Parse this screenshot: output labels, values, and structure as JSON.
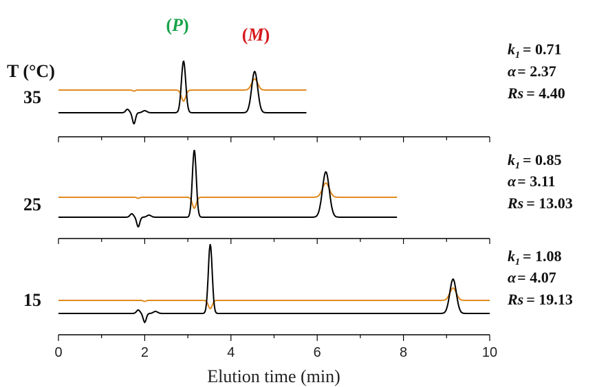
{
  "chart_data": {
    "type": "line",
    "xlabel": "Elution time (min)",
    "xlim": [
      0,
      10
    ],
    "x_ticks": [
      "0",
      "2",
      "4",
      "6",
      "8",
      "10"
    ],
    "temperature_header": "T (°C)",
    "peak_labels": [
      {
        "open": "(",
        "text": "P",
        "close": ")",
        "color": "#1aa34a",
        "x": 2.9
      },
      {
        "open": "(",
        "text": "M",
        "close": ")",
        "color": "#d7191c",
        "x": 4.55
      }
    ],
    "series_colors": {
      "upper": "#e08a1e",
      "lower": "#000000"
    },
    "panels": [
      {
        "temperature": "35",
        "x_end": 5.75,
        "peaks": [
          2.9,
          4.55
        ],
        "stats": {
          "k1_label": "k",
          "k1_sub": "1",
          "k1_value": "= 0.71",
          "alpha_label": "α",
          "alpha_value": "= 2.37",
          "rs_label": "Rs",
          "rs_value": "= 4.40"
        }
      },
      {
        "temperature": "25",
        "x_end": 7.85,
        "peaks": [
          3.15,
          6.2
        ],
        "stats": {
          "k1_label": "k",
          "k1_sub": "1",
          "k1_value": "= 0.85",
          "alpha_label": "α",
          "alpha_value": "= 3.11",
          "rs_label": "Rs",
          "rs_value": "= 13.03"
        }
      },
      {
        "temperature": "15",
        "x_end": 10,
        "peaks": [
          3.52,
          9.15
        ],
        "stats": {
          "k1_label": "k",
          "k1_sub": "1",
          "k1_value": "= 1.08",
          "alpha_label": "α",
          "alpha_value": "= 4.07",
          "rs_label": "Rs",
          "rs_value": "= 19.13"
        }
      }
    ]
  }
}
